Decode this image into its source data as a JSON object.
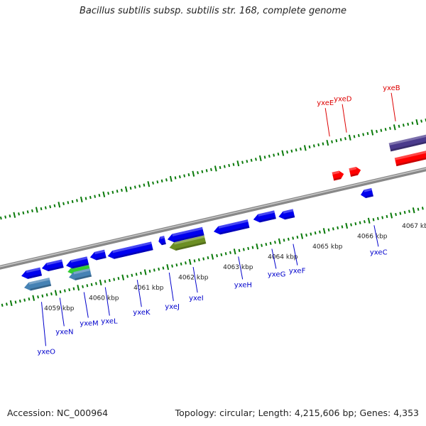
{
  "title": "Bacillus subtilis subsp. subtilis str. 168, complete genome",
  "footer": {
    "accession": "Accession: NC_000964",
    "stats": "Topology: circular; Length: 4,215,606 bp; Genes: 4,353"
  },
  "colors": {
    "forward_genes": "#ff0000",
    "forward_other": "#4a3a8c",
    "reverse_genes": "#0000ee",
    "reverse_green": "#33cc33",
    "reverse_olive": "#6b8e23",
    "reverse_steel": "#4682b4",
    "backbone": "#888888",
    "ticks": "#0a7a0a",
    "forward_labels": "#dd0000",
    "reverse_labels": "#0000cc"
  },
  "ruler": [
    {
      "label": "4059 kbp",
      "pos": 4059
    },
    {
      "label": "4060 kbp",
      "pos": 4060
    },
    {
      "label": "4061 kbp",
      "pos": 4061
    },
    {
      "label": "4062 kbp",
      "pos": 4062
    },
    {
      "label": "4063 kbp",
      "pos": 4063
    },
    {
      "label": "4064 kbp",
      "pos": 4064
    },
    {
      "label": "4065 kbp",
      "pos": 4065
    },
    {
      "label": "4066 kbp",
      "pos": 4066
    },
    {
      "label": "4067 kbp",
      "pos": 4067
    }
  ],
  "forward_genes": [
    {
      "name": "yxeE",
      "start": 4065.45,
      "end": 4065.7,
      "color": "#ff0000"
    },
    {
      "name": "yxeD",
      "start": 4065.83,
      "end": 4066.08,
      "color": "#ff0000"
    },
    {
      "name": "yxeB",
      "start": 4066.85,
      "end": 4068.5,
      "color": "#ff0000"
    },
    {
      "name": "",
      "start": 4066.8,
      "end": 4068.5,
      "color": "#4a3a8c"
    }
  ],
  "reverse_genes": [
    {
      "name": "yxeO",
      "start": 4058.35,
      "end": 4058.95,
      "color": "#4682b4"
    },
    {
      "name": "",
      "start": 4058.35,
      "end": 4058.8,
      "color": "#0000ee"
    },
    {
      "name": "yxeN",
      "start": 4058.82,
      "end": 4059.3,
      "color": "#0000ee"
    },
    {
      "name": "yxeM",
      "start": 4059.35,
      "end": 4059.85,
      "color": "#33cc33"
    },
    {
      "name": "",
      "start": 4059.35,
      "end": 4059.85,
      "color": "#4682b4"
    },
    {
      "name": "",
      "start": 4059.35,
      "end": 4059.85,
      "color": "#0000ee"
    },
    {
      "name": "yxeL",
      "start": 4059.9,
      "end": 4060.25,
      "color": "#0000ee"
    },
    {
      "name": "yxeK",
      "start": 4060.28,
      "end": 4061.3,
      "color": "#0000ee"
    },
    {
      "name": "yxeJ",
      "start": 4061.43,
      "end": 4061.58,
      "color": "#0000ee"
    },
    {
      "name": "yxeI",
      "start": 4061.63,
      "end": 4062.45,
      "color": "#6b8e23"
    },
    {
      "name": "",
      "start": 4061.63,
      "end": 4062.45,
      "color": "#0000ee"
    },
    {
      "name": "yxeH",
      "start": 4062.65,
      "end": 4063.45,
      "color": "#0000ee"
    },
    {
      "name": "yxeG",
      "start": 4063.55,
      "end": 4064.05,
      "color": "#0000ee"
    },
    {
      "name": "yxeF",
      "start": 4064.1,
      "end": 4064.45,
      "color": "#0000ee"
    },
    {
      "name": "yxeC",
      "start": 4065.95,
      "end": 4066.22,
      "color": "#0000ee"
    }
  ]
}
